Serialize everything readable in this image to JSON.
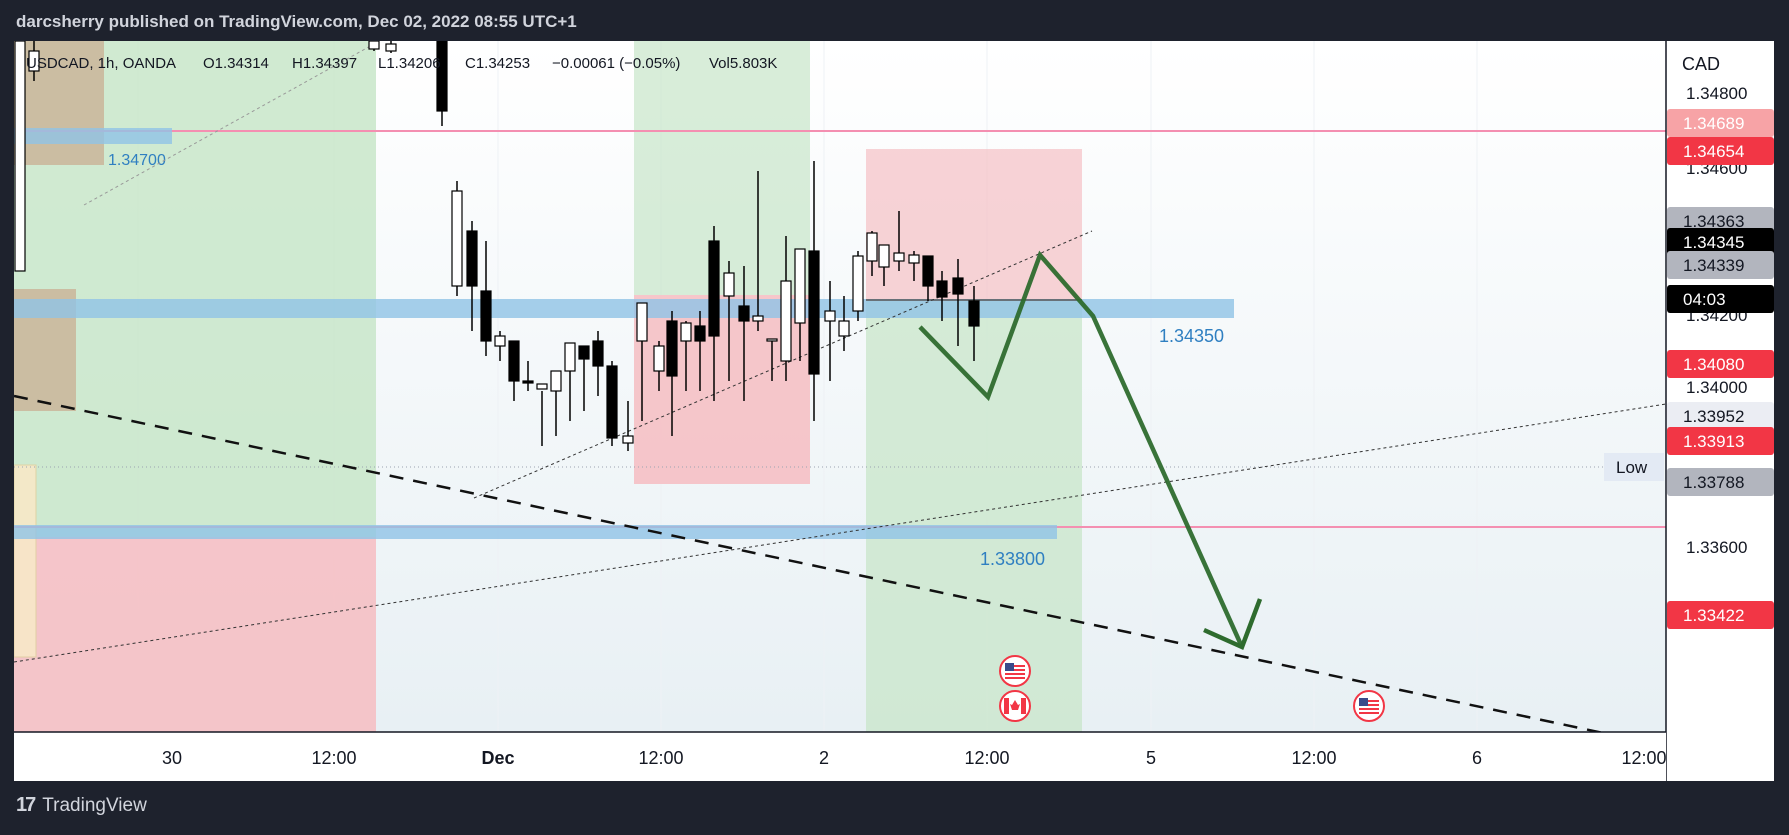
{
  "header": {
    "publisher_line": "darcsherry published on TradingView.com, Dec 02, 2022 08:55 UTC+1"
  },
  "legend": {
    "symbol": "USDCAD, 1h, OANDA",
    "open": "O1.34314",
    "high": "H1.34397",
    "low": "L1.34206",
    "close": "C1.34253",
    "change": "−0.00061 (−0.05%)",
    "volume": "Vol5.803K"
  },
  "price_axis": {
    "currency": "CAD",
    "ticks": [
      "1.34800",
      "1.34600",
      "1.34200",
      "1.34000",
      "1.33600"
    ],
    "labels": [
      {
        "text": "1.34689",
        "value": 1.34689,
        "bg": "#f7a3a6",
        "fg": "#ffffff"
      },
      {
        "text": "1.34654",
        "value": 1.34654,
        "bg": "#f23645",
        "fg": "#ffffff"
      },
      {
        "text": "1.34363",
        "value": 1.34363,
        "bg": "#b2b5be",
        "fg": "#131722"
      },
      {
        "text": "1.34345",
        "value": 1.34345,
        "bg": "#000000",
        "fg": "#ffffff"
      },
      {
        "text": "1.34339",
        "value": 1.34339,
        "bg": "#b2b5be",
        "fg": "#131722"
      },
      {
        "text": "04:03",
        "value": 1.34295,
        "bg": "#000000",
        "fg": "#ffffff"
      },
      {
        "text": "1.34080",
        "value": 1.3408,
        "bg": "#f23645",
        "fg": "#ffffff"
      },
      {
        "text": "1.33952",
        "value": 1.33952,
        "bg": "#ebedf3",
        "fg": "#131722"
      },
      {
        "text": "1.33913",
        "value": 1.33913,
        "bg": "#f23645",
        "fg": "#ffffff"
      },
      {
        "text": "1.33788",
        "value": 1.33788,
        "bg": "#b2b5be",
        "fg": "#131722"
      },
      {
        "text": "1.33422",
        "value": 1.33422,
        "bg": "#f23645",
        "fg": "#ffffff"
      }
    ],
    "low_tag": "Low"
  },
  "time_axis": {
    "ticks": [
      {
        "text": "30",
        "bold": false
      },
      {
        "text": "12:00",
        "bold": false
      },
      {
        "text": "Dec",
        "bold": true
      },
      {
        "text": "12:00",
        "bold": false
      },
      {
        "text": "2",
        "bold": false
      },
      {
        "text": "12:00",
        "bold": false
      },
      {
        "text": "5",
        "bold": false
      },
      {
        "text": "12:00",
        "bold": false
      },
      {
        "text": "6",
        "bold": false
      },
      {
        "text": "12:00",
        "bold": false
      }
    ]
  },
  "zones": [
    {
      "text": "1.34700",
      "value": 1.347
    },
    {
      "text": "1.34350",
      "value": 1.3435
    },
    {
      "text": "1.33800",
      "value": 1.338
    }
  ],
  "colors": {
    "green_zone": "#c8e6c9",
    "red_zone": "#f5c0c4",
    "blue_zone": "#90c3e6",
    "pink_line": "#f48fb1",
    "arrow": "#2e6b2e",
    "zone_text": "#2f7fc1"
  },
  "footer": {
    "brand": "TradingView"
  }
}
